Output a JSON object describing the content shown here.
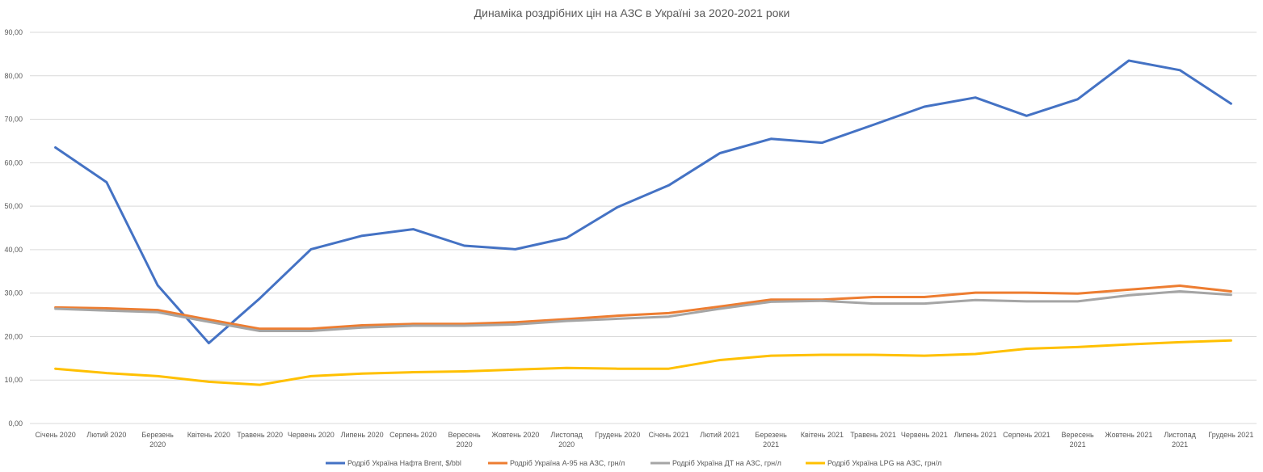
{
  "chart_data": {
    "type": "line",
    "title": "Динаміка роздрібних цін на АЗС в Україні за 2020-2021 роки",
    "xlabel": "",
    "ylabel": "",
    "ylim": [
      0,
      90
    ],
    "y_ticks": [
      "0,00",
      "10,00",
      "20,00",
      "30,00",
      "40,00",
      "50,00",
      "60,00",
      "70,00",
      "80,00",
      "90,00"
    ],
    "grid": true,
    "legend_position": "bottom",
    "categories": [
      [
        "Січень 2020"
      ],
      [
        "Лютий 2020"
      ],
      [
        "Березень",
        "2020"
      ],
      [
        "Квітень 2020"
      ],
      [
        "Травень 2020"
      ],
      [
        "Червень 2020"
      ],
      [
        "Липень 2020"
      ],
      [
        "Серпень 2020"
      ],
      [
        "Вересень",
        "2020"
      ],
      [
        "Жовтень 2020"
      ],
      [
        "Листопад",
        "2020"
      ],
      [
        "Грудень 2020"
      ],
      [
        "Січень 2021"
      ],
      [
        "Лютий 2021"
      ],
      [
        "Березень",
        "2021"
      ],
      [
        "Квітень 2021"
      ],
      [
        "Травень 2021"
      ],
      [
        "Червень 2021"
      ],
      [
        "Липень 2021"
      ],
      [
        "Серпень 2021"
      ],
      [
        "Вересень",
        "2021"
      ],
      [
        "Жовтень 2021"
      ],
      [
        "Листопад",
        "2021"
      ],
      [
        "Грудень 2021"
      ]
    ],
    "series": [
      {
        "name": "Родріб Україна Нафта Brent, $/bbl",
        "color": "#4472C4",
        "values": [
          63.5,
          55.5,
          31.8,
          18.5,
          28.8,
          40.1,
          43.2,
          44.7,
          40.9,
          40.1,
          42.7,
          49.8,
          54.8,
          62.2,
          65.5,
          64.6,
          68.7,
          72.9,
          75.0,
          70.8,
          74.6,
          83.5,
          81.3,
          73.6
        ]
      },
      {
        "name": "Родріб Україна А-95 на АЗС, грн/л",
        "color": "#ED7D31",
        "values": [
          26.7,
          26.5,
          26.1,
          23.9,
          21.8,
          21.8,
          22.6,
          22.9,
          22.9,
          23.3,
          24.0,
          24.8,
          25.4,
          26.9,
          28.5,
          28.5,
          29.1,
          29.1,
          30.1,
          30.1,
          29.9,
          30.8,
          31.7,
          30.4
        ]
      },
      {
        "name": "Родріб Україна ДТ на АЗС, грн/л",
        "color": "#A5A5A5",
        "values": [
          26.4,
          26.0,
          25.6,
          23.4,
          21.3,
          21.3,
          22.1,
          22.5,
          22.5,
          22.8,
          23.6,
          24.1,
          24.6,
          26.4,
          28.0,
          28.2,
          27.6,
          27.6,
          28.4,
          28.1,
          28.1,
          29.5,
          30.4,
          29.6
        ]
      },
      {
        "name": "Родріб Україна LPG на АЗС, грн/л",
        "color": "#FFC000",
        "values": [
          12.6,
          11.6,
          10.9,
          9.6,
          8.9,
          10.9,
          11.5,
          11.8,
          12.0,
          12.4,
          12.8,
          12.6,
          12.6,
          14.6,
          15.6,
          15.8,
          15.8,
          15.6,
          16.0,
          17.2,
          17.6,
          18.2,
          18.7,
          19.1
        ]
      }
    ]
  }
}
